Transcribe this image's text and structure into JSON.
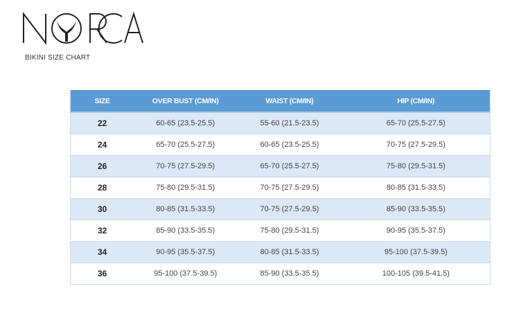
{
  "brand": {
    "logo_text": "NORCA",
    "subtitle": "BIKINI SIZE CHART"
  },
  "colors": {
    "header_bg": "#5b9bd5",
    "odd_row_bg": "#dce8f6",
    "even_row_bg": "#ffffff"
  },
  "table": {
    "headers": [
      "SIZE",
      "OVER BUST (CM/IN)",
      "WAIST (CM/IN)",
      "HIP (CM/IN)"
    ],
    "rows": [
      [
        "22",
        "60-65 (23.5-25.5)",
        "55-60 (21.5-23.5)",
        "65-70 (25.5-27.5)"
      ],
      [
        "24",
        "65-70 (25.5-27.5)",
        "60-65 (23.5-25.5)",
        "70-75 (27.5-29.5)"
      ],
      [
        "26",
        "70-75 (27.5-29.5)",
        "65-70 (25.5-27.5)",
        "75-80 (29.5-31.5)"
      ],
      [
        "28",
        "75-80 (29.5-31.5)",
        "70-75 (27.5-29.5)",
        "80-85 (31.5-33.5)"
      ],
      [
        "30",
        "80-85 (31.5-33.5)",
        "70-75 (27.5-29.5)",
        "85-90 (33.5-35.5)"
      ],
      [
        "32",
        "85-90 (33.5-35.5)",
        "75-80 (29.5-31.5)",
        "90-95 (35.5-37.5)"
      ],
      [
        "34",
        "90-95 (35.5-37.5)",
        "80-85 (31.5-33.5)",
        "95-100 (37.5-39.5)"
      ],
      [
        "36",
        "95-100 (37.5-39.5)",
        "85-90 (33.5-35.5)",
        "100-105 (39.5-41.5)"
      ]
    ]
  }
}
